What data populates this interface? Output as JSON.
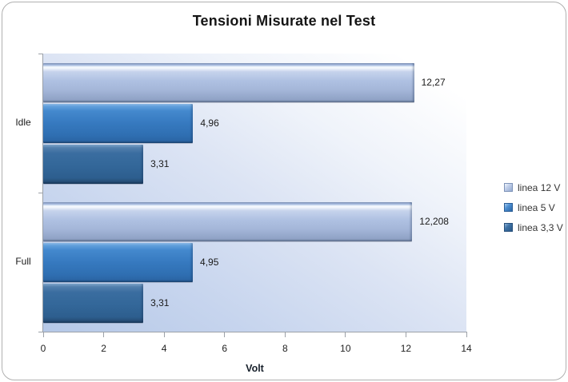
{
  "chart_data": {
    "type": "bar",
    "orientation": "horizontal",
    "title": "Tensioni Misurate nel Test",
    "xlabel": "Volt",
    "ylabel": "",
    "categories": [
      "Idle",
      "Full"
    ],
    "series": [
      {
        "name": "linea 12 V",
        "values": [
          12.27,
          12.208
        ],
        "value_labels": [
          "12,27",
          "12,208"
        ]
      },
      {
        "name": "linea 5 V",
        "values": [
          4.96,
          4.95
        ],
        "value_labels": [
          "4,96",
          "4,95"
        ]
      },
      {
        "name": "linea 3,3 V",
        "values": [
          3.31,
          3.31
        ],
        "value_labels": [
          "3,31",
          "3,31"
        ]
      }
    ],
    "xlim": [
      0,
      14
    ],
    "x_ticks": [
      0,
      2,
      4,
      6,
      8,
      10,
      12,
      14
    ],
    "grid": false,
    "legend_position": "right",
    "legend_entries": [
      "linea 12 V",
      "linea 5 V",
      "linea 3,3 V"
    ]
  },
  "style": {
    "series_colors": [
      "#A9BDDF",
      "#3379BE",
      "#326699"
    ],
    "plot_background_from": "#B5C8E7",
    "plot_background_to": "#FFFFFF",
    "axis_color": "#9CA1A8",
    "text_color": "#1A1A1A",
    "page_border_color": "#B0B0B0"
  }
}
